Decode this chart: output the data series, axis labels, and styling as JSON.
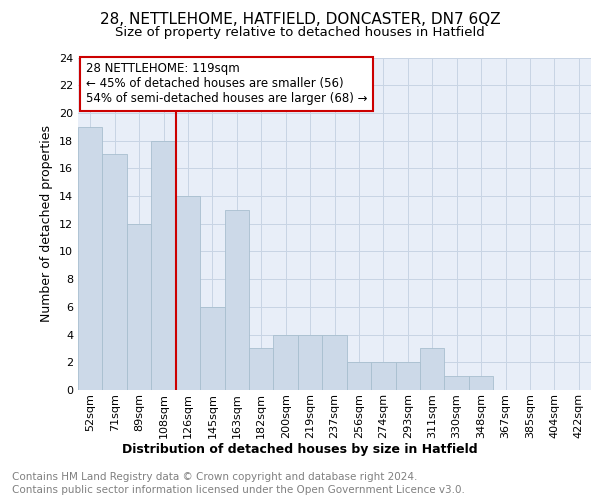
{
  "title": "28, NETTLEHOME, HATFIELD, DONCASTER, DN7 6QZ",
  "subtitle": "Size of property relative to detached houses in Hatfield",
  "xlabel": "Distribution of detached houses by size in Hatfield",
  "ylabel": "Number of detached properties",
  "categories": [
    "52sqm",
    "71sqm",
    "89sqm",
    "108sqm",
    "126sqm",
    "145sqm",
    "163sqm",
    "182sqm",
    "200sqm",
    "219sqm",
    "237sqm",
    "256sqm",
    "274sqm",
    "293sqm",
    "311sqm",
    "330sqm",
    "348sqm",
    "367sqm",
    "385sqm",
    "404sqm",
    "422sqm"
  ],
  "values": [
    19,
    17,
    12,
    18,
    14,
    6,
    13,
    3,
    4,
    4,
    4,
    2,
    2,
    2,
    3,
    1,
    1,
    0,
    0,
    0,
    0
  ],
  "bar_color": "#ccd9e8",
  "bar_edge_color": "#a8bfcf",
  "red_line_index": 4,
  "red_line_color": "#cc0000",
  "annotation_text": "28 NETTLEHOME: 119sqm\n← 45% of detached houses are smaller (56)\n54% of semi-detached houses are larger (68) →",
  "annotation_box_color": "#ffffff",
  "annotation_box_edge_color": "#cc0000",
  "ylim": [
    0,
    24
  ],
  "yticks": [
    0,
    2,
    4,
    6,
    8,
    10,
    12,
    14,
    16,
    18,
    20,
    22,
    24
  ],
  "footer_line1": "Contains HM Land Registry data © Crown copyright and database right 2024.",
  "footer_line2": "Contains public sector information licensed under the Open Government Licence v3.0.",
  "grid_color": "#c8d4e4",
  "background_color": "#e8eef8",
  "title_fontsize": 11,
  "subtitle_fontsize": 9.5,
  "label_fontsize": 9,
  "tick_fontsize": 8,
  "annotation_fontsize": 8.5,
  "footer_fontsize": 7.5
}
